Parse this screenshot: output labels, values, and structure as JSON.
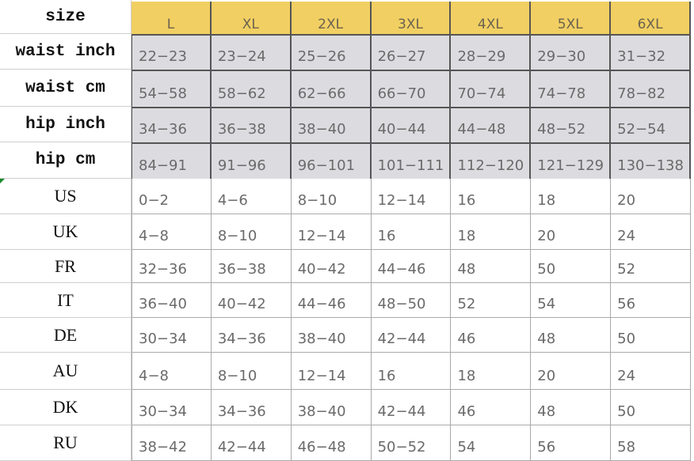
{
  "table": {
    "row_labels": [
      "size",
      "waist inch",
      "waist cm",
      "hip inch",
      "hip cm",
      "US",
      "UK",
      "FR",
      "IT",
      "DE",
      "AU",
      "DK",
      "RU"
    ],
    "columns": [
      "L",
      "XL",
      "2XL",
      "3XL",
      "4XL",
      "5XL",
      "6XL"
    ],
    "rows": [
      [
        "22-23",
        "23-24",
        "25-26",
        "26-27",
        "28-29",
        "29-30",
        "31-32"
      ],
      [
        "54-58",
        "58-62",
        "62-66",
        "66-70",
        "70-74",
        "74-78",
        "78-82"
      ],
      [
        "34-36",
        "36-38",
        "38-40",
        "40-44",
        "44-48",
        "48-52",
        "52-54"
      ],
      [
        "84-91",
        "91-96",
        "96-101",
        "101-111",
        "112-120",
        "121-129",
        "130-138"
      ],
      [
        "0-2",
        "4-6",
        "8-10",
        "12-14",
        "16",
        "18",
        "20"
      ],
      [
        "4-8",
        "8-10",
        "12-14",
        "16",
        "18",
        "20",
        "24"
      ],
      [
        "32-36",
        "36-38",
        "40-42",
        "44-46",
        "48",
        "50",
        "52"
      ],
      [
        "36-40",
        "40-42",
        "44-46",
        "48-50",
        "52",
        "54",
        "56"
      ],
      [
        "30-34",
        "34-36",
        "38-40",
        "42-44",
        "46",
        "48",
        "50"
      ],
      [
        "4-8",
        "8-10",
        "12-14",
        "16",
        "18",
        "20",
        "24"
      ],
      [
        "30-34",
        "34-36",
        "38-40",
        "42-44",
        "46",
        "48",
        "50"
      ],
      [
        "38-42",
        "42-44",
        "46-48",
        "50-52",
        "54",
        "56",
        "58"
      ]
    ]
  },
  "colors": {
    "header_bg": "#f1cf62",
    "measure_bg": "#dcdce0",
    "border": "#555555"
  }
}
